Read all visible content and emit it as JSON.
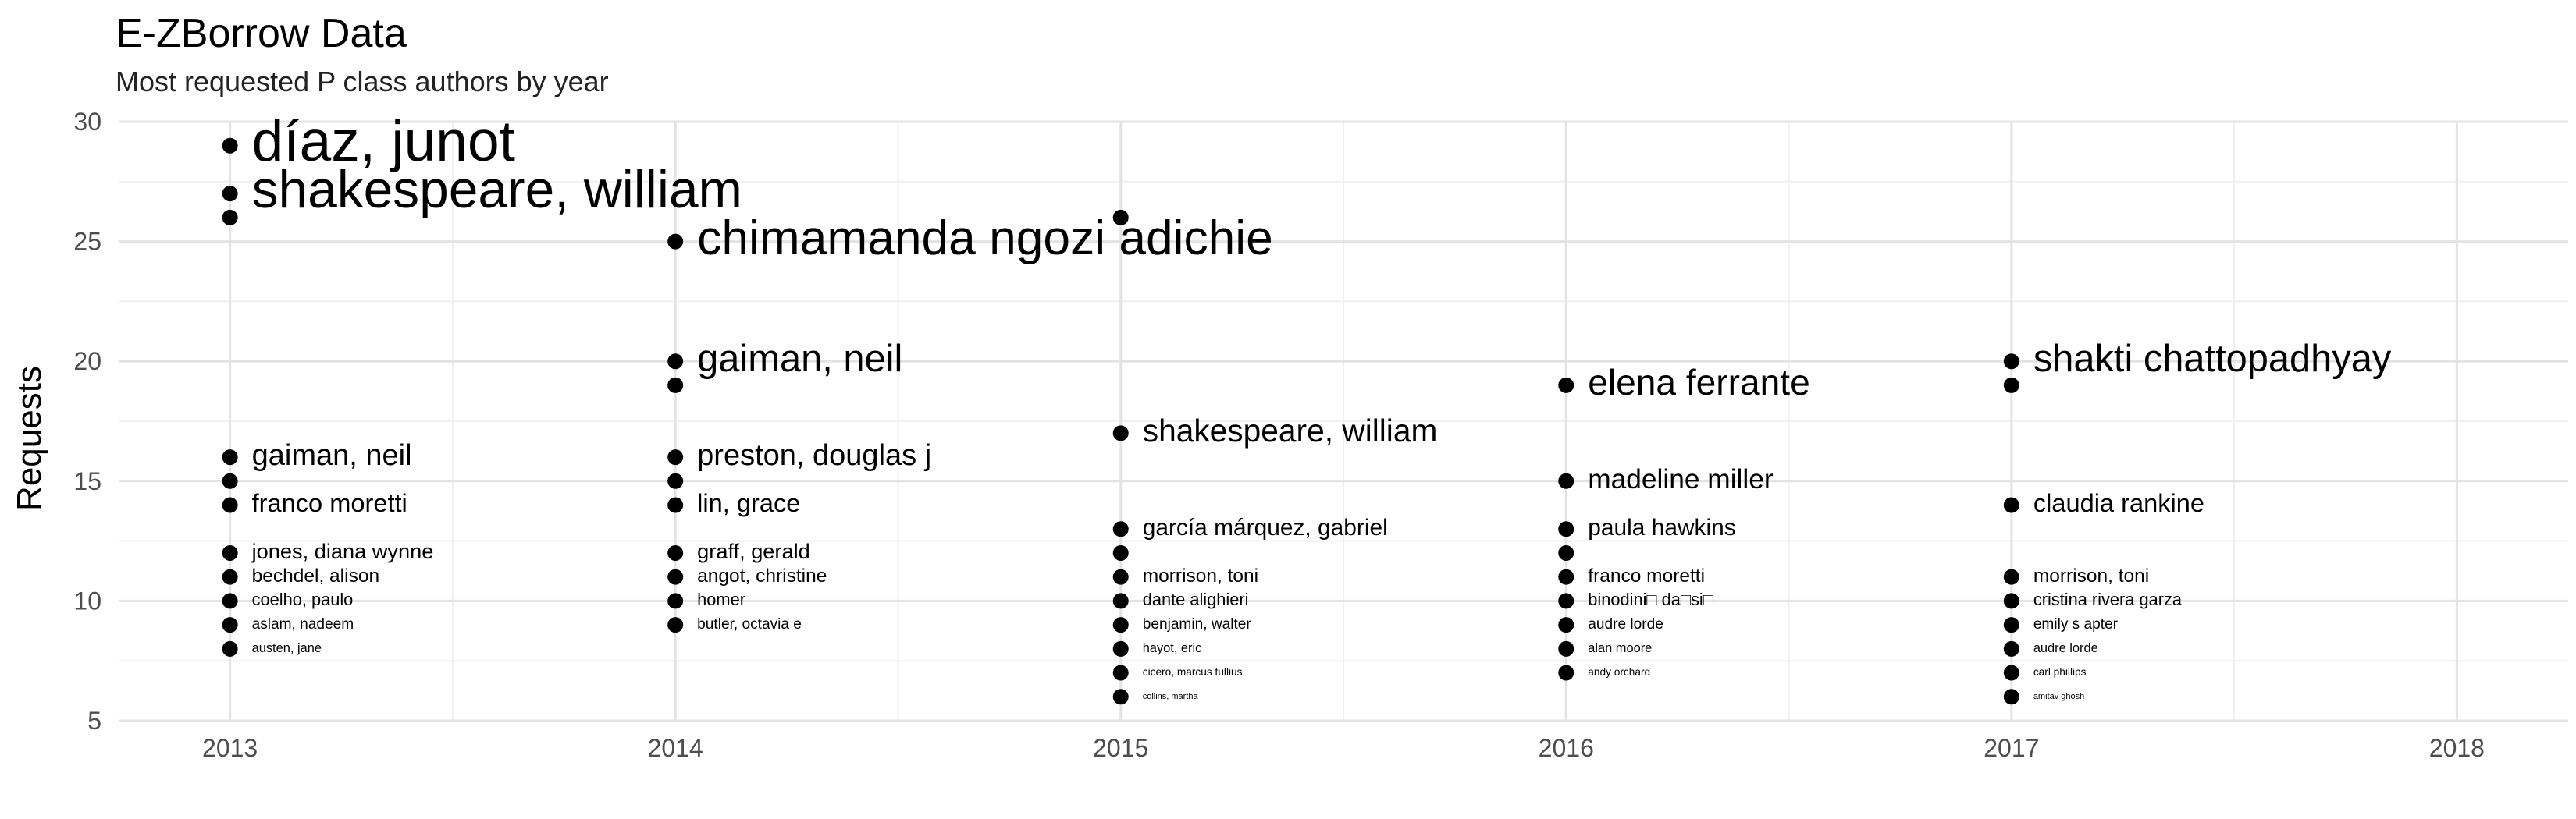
{
  "chart_data": {
    "type": "scatter",
    "title": "E-ZBorrow Data",
    "subtitle": "Most requested P class authors by year",
    "xlabel": "",
    "ylabel": "Requests",
    "xlim": [
      2012.75,
      2018.25
    ],
    "ylim": [
      5,
      30
    ],
    "xticks": [
      2013,
      2014,
      2015,
      2016,
      2017,
      2018
    ],
    "yticks": [
      5,
      10,
      15,
      20,
      25,
      30
    ],
    "grid": true,
    "points": [
      {
        "x": 2013,
        "y": 29,
        "label": "díaz, junot"
      },
      {
        "x": 2013,
        "y": 27,
        "label": "shakespeare, william"
      },
      {
        "x": 2013,
        "y": 26,
        "label": ""
      },
      {
        "x": 2013,
        "y": 16,
        "label": "gaiman, neil"
      },
      {
        "x": 2013,
        "y": 15,
        "label": ""
      },
      {
        "x": 2013,
        "y": 14,
        "label": "franco moretti"
      },
      {
        "x": 2013,
        "y": 12,
        "label": "jones, diana wynne"
      },
      {
        "x": 2013,
        "y": 11,
        "label": "bechdel, alison"
      },
      {
        "x": 2013,
        "y": 10,
        "label": "coelho, paulo"
      },
      {
        "x": 2013,
        "y": 9,
        "label": "aslam, nadeem"
      },
      {
        "x": 2013,
        "y": 8,
        "label": "austen, jane"
      },
      {
        "x": 2014,
        "y": 25,
        "label": "chimamanda ngozi adichie"
      },
      {
        "x": 2014,
        "y": 20,
        "label": "gaiman, neil"
      },
      {
        "x": 2014,
        "y": 19,
        "label": ""
      },
      {
        "x": 2014,
        "y": 16,
        "label": "preston, douglas j"
      },
      {
        "x": 2014,
        "y": 15,
        "label": ""
      },
      {
        "x": 2014,
        "y": 14,
        "label": "lin, grace"
      },
      {
        "x": 2014,
        "y": 12,
        "label": "graff, gerald"
      },
      {
        "x": 2014,
        "y": 11,
        "label": "angot, christine"
      },
      {
        "x": 2014,
        "y": 10,
        "label": "homer"
      },
      {
        "x": 2014,
        "y": 9,
        "label": "butler, octavia e"
      },
      {
        "x": 2015,
        "y": 26,
        "label": ""
      },
      {
        "x": 2015,
        "y": 17,
        "label": "shakespeare, william"
      },
      {
        "x": 2015,
        "y": 13,
        "label": "garcía márquez, gabriel"
      },
      {
        "x": 2015,
        "y": 12,
        "label": ""
      },
      {
        "x": 2015,
        "y": 11,
        "label": "morrison, toni"
      },
      {
        "x": 2015,
        "y": 10,
        "label": "dante alighieri"
      },
      {
        "x": 2015,
        "y": 9,
        "label": "benjamin, walter"
      },
      {
        "x": 2015,
        "y": 8,
        "label": "hayot, eric"
      },
      {
        "x": 2015,
        "y": 7,
        "label": "cicero, marcus tullius"
      },
      {
        "x": 2015,
        "y": 6,
        "label": "collins, martha"
      },
      {
        "x": 2016,
        "y": 19,
        "label": "elena ferrante"
      },
      {
        "x": 2016,
        "y": 15,
        "label": "madeline miller"
      },
      {
        "x": 2016,
        "y": 13,
        "label": "paula hawkins"
      },
      {
        "x": 2016,
        "y": 12,
        "label": ""
      },
      {
        "x": 2016,
        "y": 11,
        "label": "franco moretti"
      },
      {
        "x": 2016,
        "y": 10,
        "label": "binodini□ da□si□"
      },
      {
        "x": 2016,
        "y": 9,
        "label": "audre lorde"
      },
      {
        "x": 2016,
        "y": 8,
        "label": "alan moore"
      },
      {
        "x": 2016,
        "y": 7,
        "label": "andy orchard"
      },
      {
        "x": 2017,
        "y": 20,
        "label": "shakti chattopadhyay"
      },
      {
        "x": 2017,
        "y": 19,
        "label": ""
      },
      {
        "x": 2017,
        "y": 14,
        "label": "claudia rankine"
      },
      {
        "x": 2017,
        "y": 11,
        "label": "morrison, toni"
      },
      {
        "x": 2017,
        "y": 10,
        "label": "cristina rivera garza"
      },
      {
        "x": 2017,
        "y": 9,
        "label": "emily s apter"
      },
      {
        "x": 2017,
        "y": 8,
        "label": "audre lorde"
      },
      {
        "x": 2017,
        "y": 7,
        "label": "carl phillips"
      },
      {
        "x": 2017,
        "y": 6,
        "label": "amitav ghosh"
      }
    ]
  }
}
